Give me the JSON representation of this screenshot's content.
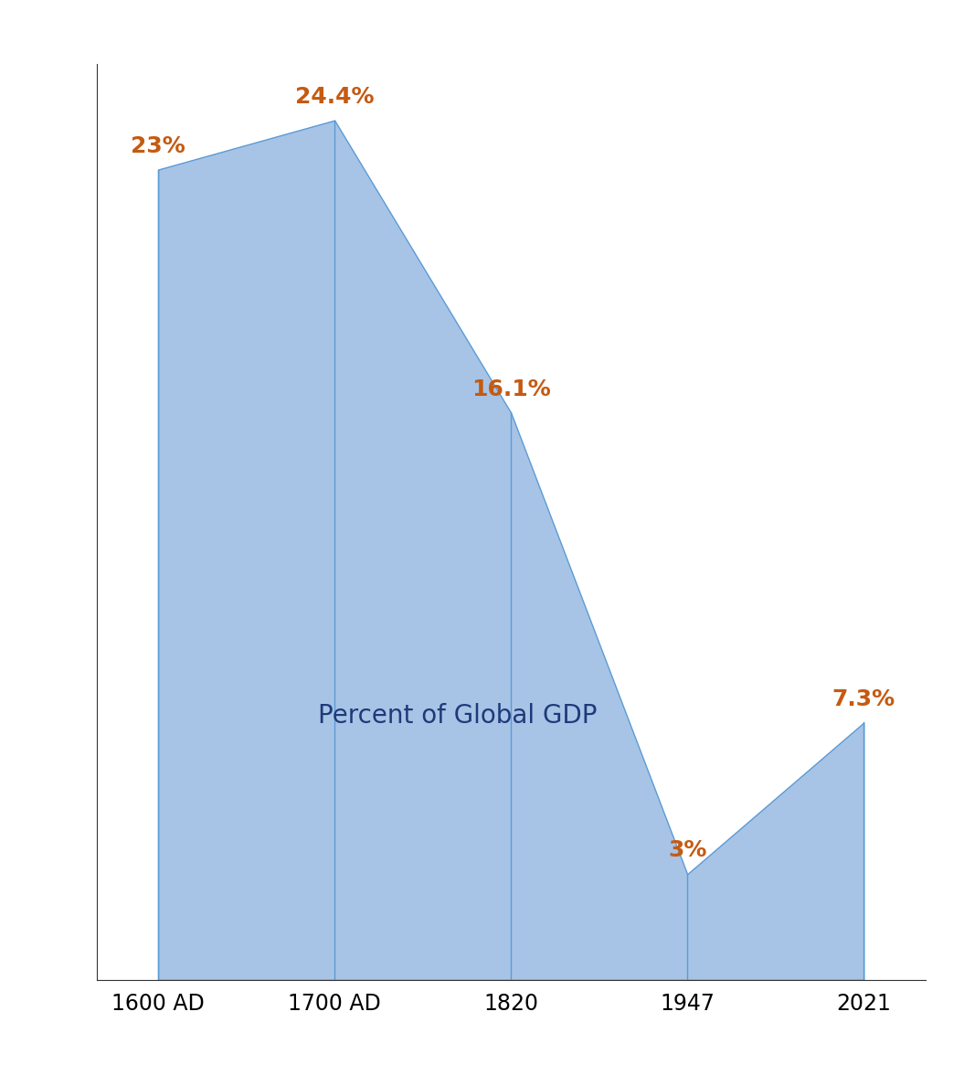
{
  "chart_data": {
    "type": "area",
    "annotation": "Percent of Global GDP",
    "categories": [
      "1600 AD",
      "1700 AD",
      "1820",
      "1947",
      "2021"
    ],
    "values": [
      23,
      24.4,
      16.1,
      3,
      7.3
    ],
    "value_labels": [
      "23%",
      "24.4%",
      "16.1%",
      "3%",
      "7.3%"
    ],
    "data_labels": true,
    "color": "#a7c4e6",
    "ylim": [
      0,
      26
    ],
    "yticks": [],
    "tick_labels": "x",
    "grid": false
  }
}
